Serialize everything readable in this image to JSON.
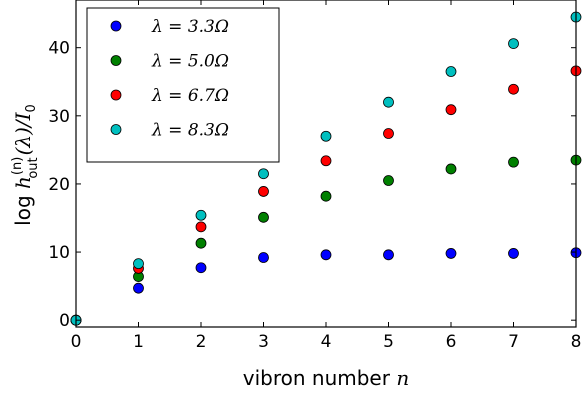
{
  "chart_data": {
    "type": "scatter",
    "xlabel_text": "vibron number ",
    "xlabel_var": "n",
    "ylabel": {
      "log": "log ",
      "h": "h",
      "sup": "(n)",
      "sub": "out",
      "rest": "(λ)/I",
      "rest_sub": "0"
    },
    "xlim": [
      0,
      8
    ],
    "ylim": [
      -1,
      47
    ],
    "xticks": [
      "0",
      "1",
      "2",
      "3",
      "4",
      "5",
      "6",
      "7",
      "8"
    ],
    "yticks": [
      "0",
      "10",
      "20",
      "30",
      "40"
    ],
    "grid": false,
    "legend_position": "top-left",
    "series": [
      {
        "name": "λ = 3.3Ω",
        "color": "#0000ff",
        "points": [
          [
            0,
            0
          ],
          [
            1,
            4.7
          ],
          [
            2,
            7.7
          ],
          [
            3,
            9.2
          ],
          [
            4,
            9.6
          ],
          [
            5,
            9.6
          ],
          [
            6,
            9.8
          ],
          [
            7,
            9.8
          ],
          [
            8,
            9.9
          ]
        ]
      },
      {
        "name": "λ = 5.0Ω",
        "color": "#008000",
        "points": [
          [
            0,
            0
          ],
          [
            1,
            6.4
          ],
          [
            2,
            11.3
          ],
          [
            3,
            15.1
          ],
          [
            4,
            18.2
          ],
          [
            5,
            20.5
          ],
          [
            6,
            22.2
          ],
          [
            7,
            23.2
          ],
          [
            8,
            23.5
          ]
        ]
      },
      {
        "name": "λ = 6.7Ω",
        "color": "#ff0000",
        "points": [
          [
            0,
            0
          ],
          [
            1,
            7.6
          ],
          [
            2,
            13.7
          ],
          [
            3,
            18.9
          ],
          [
            4,
            23.4
          ],
          [
            5,
            27.4
          ],
          [
            6,
            30.9
          ],
          [
            7,
            33.9
          ],
          [
            8,
            36.6
          ]
        ]
      },
      {
        "name": "λ = 8.3Ω",
        "color": "#00bfbf",
        "points": [
          [
            0,
            0
          ],
          [
            1,
            8.3
          ],
          [
            2,
            15.4
          ],
          [
            3,
            21.5
          ],
          [
            4,
            27.0
          ],
          [
            5,
            32.0
          ],
          [
            6,
            36.5
          ],
          [
            7,
            40.6
          ],
          [
            8,
            44.5
          ]
        ]
      }
    ]
  }
}
